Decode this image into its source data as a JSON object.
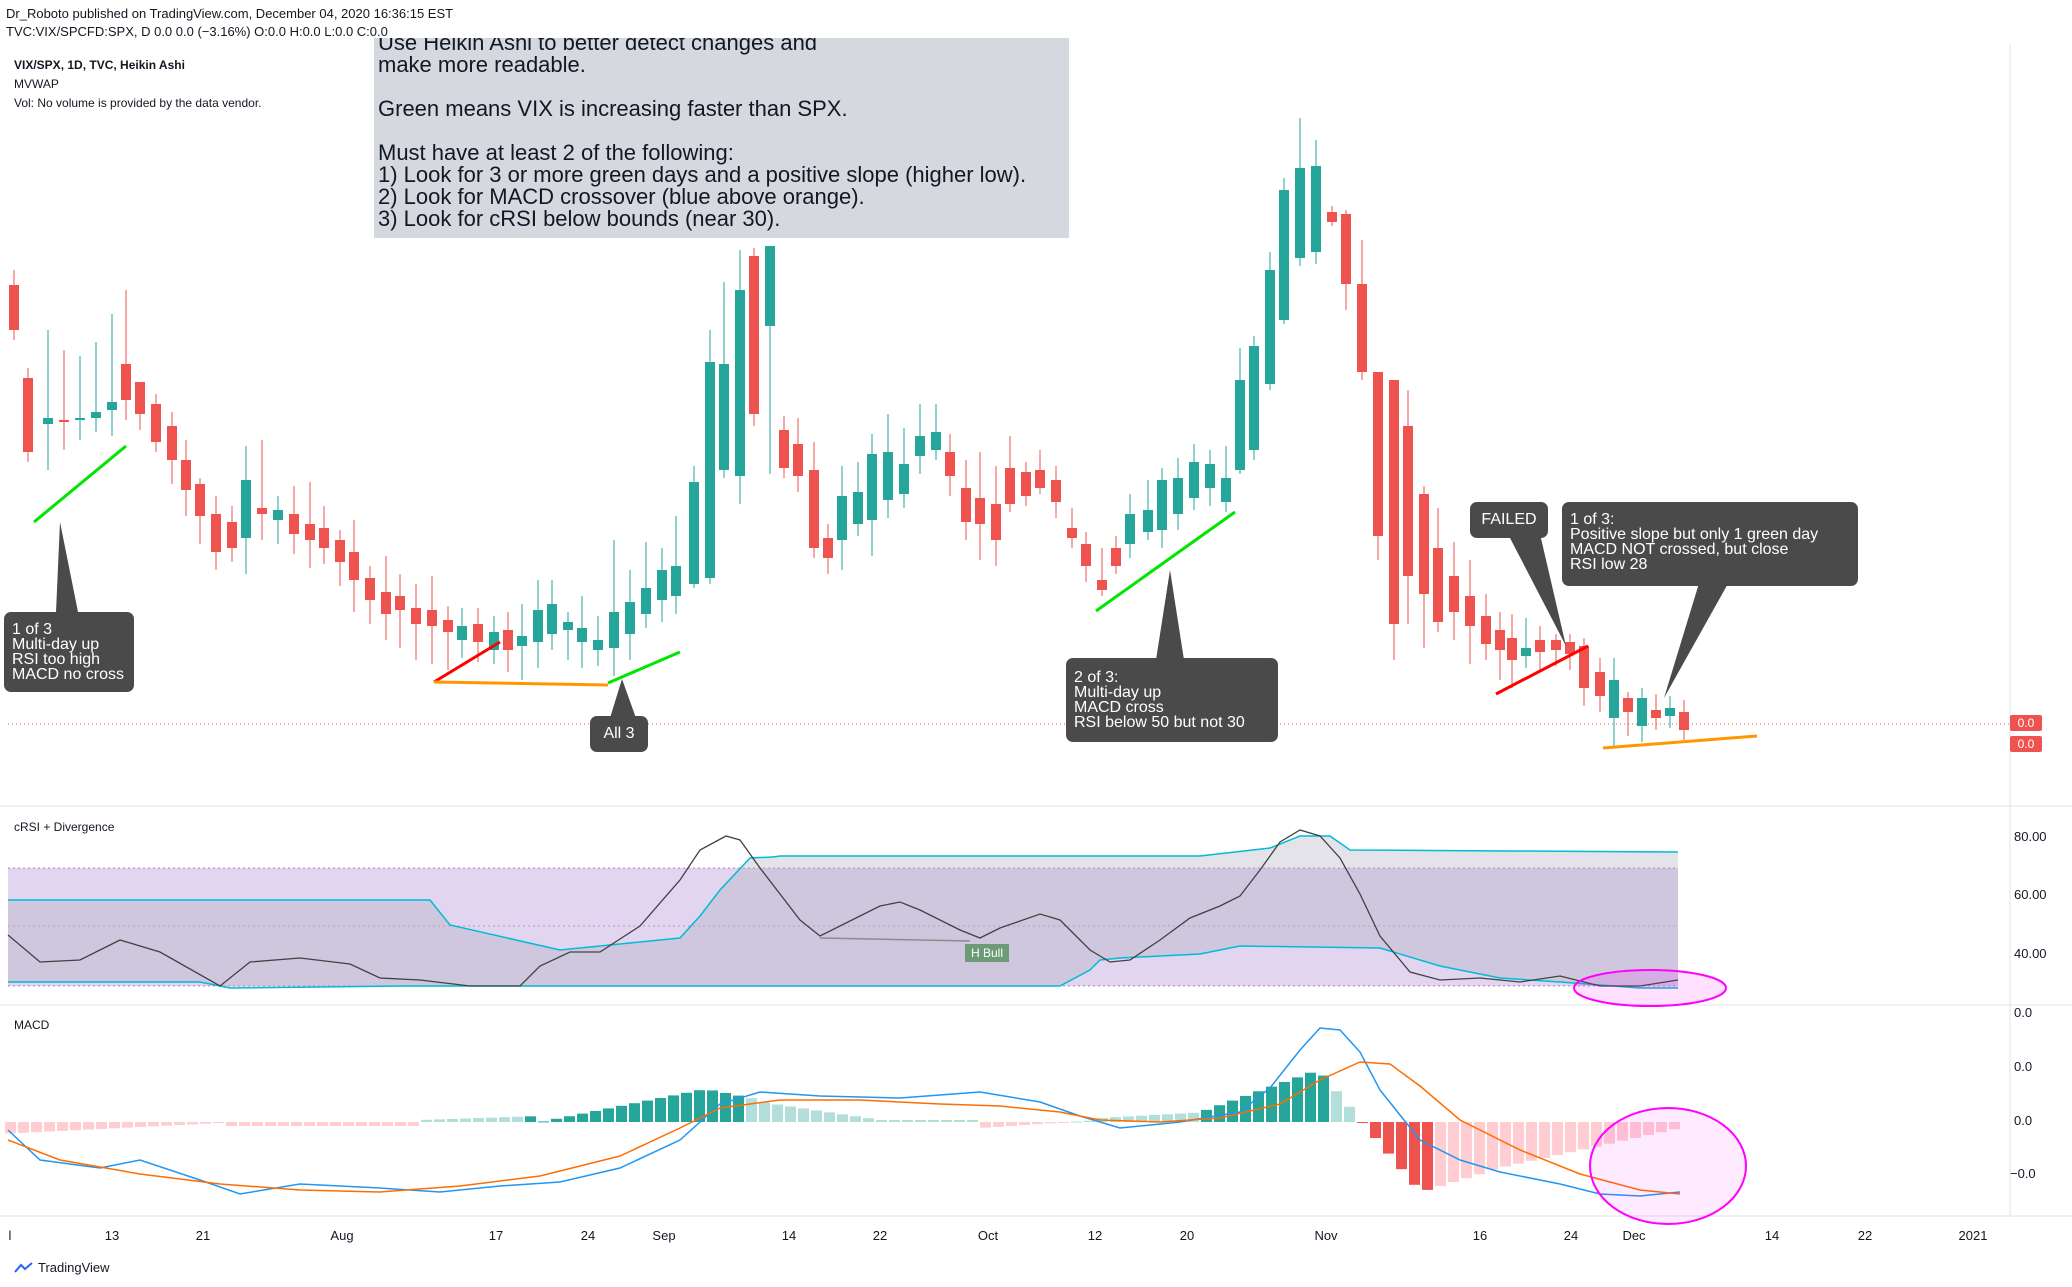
{
  "header": {
    "line1": "Dr_Roboto published on TradingView.com, December 04, 2020 16:36:15 EST",
    "line2": "TVC:VIX/SPCFD:SPX, D 0.0 0.0 (−3.16%) O:0.0 H:0.0 L:0.0 C:0.0"
  },
  "main_pane": {
    "title": "VIX/SPX, 1D, TVC, Heikin Ashi",
    "line2": "MVWAP",
    "line3": "Vol: No volume is provided by the data vendor."
  },
  "note": {
    "lines": [
      "Use Heikin Ashi to better detect changes and",
      "make more readable.",
      "",
      "Green means VIX is increasing faster than SPX.",
      "",
      "Must have at least 2 of the following:",
      "1) Look for 3 or more green days and a positive slope (higher low).",
      "2) Look for MACD crossover (blue above orange).",
      "3) Look for cRSI below bounds (near 30)."
    ]
  },
  "callouts": {
    "c1": [
      "1 of 3",
      "Multi-day up",
      "RSI too high",
      "MACD no cross"
    ],
    "c2": [
      "All 3"
    ],
    "c3": [
      "2 of 3:",
      "Multi-day up",
      "MACD cross",
      "RSI below 50 but not 30"
    ],
    "c4": [
      "FAILED"
    ],
    "c5": [
      "1 of 3:",
      "Positive slope but only 1 green day",
      "MACD NOT crossed, but close",
      "RSI low 28"
    ]
  },
  "price_tags": [
    "0.0",
    "0.0"
  ],
  "crsi_pane": {
    "title": "cRSI + Divergence",
    "hbull_label": "H Bull",
    "y_labels": [
      "80.00",
      "60.00",
      "40.00"
    ]
  },
  "macd_pane": {
    "title": "MACD",
    "y_labels": [
      "0.0",
      "0.0",
      "0.0",
      "−0.0"
    ]
  },
  "x_axis": {
    "labels": [
      "l",
      "13",
      "21",
      "Aug",
      "17",
      "24",
      "Sep",
      "14",
      "22",
      "Oct",
      "12",
      "20",
      "Nov",
      "16",
      "24",
      "Dec",
      "14",
      "22",
      "2021"
    ]
  },
  "footer": {
    "brand": "TradingView"
  },
  "colors": {
    "up": "#26a69a",
    "down": "#ef5350",
    "green_line": "#00e600",
    "red_line": "#ff0000",
    "orange_line": "#ff9800",
    "magenta": "#ff00ff",
    "crsi_band": "#e1d5ef",
    "macd_blue": "#2196f3",
    "macd_orange": "#ff6d00"
  }
}
